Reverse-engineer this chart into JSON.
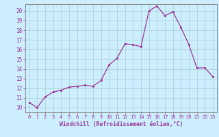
{
  "x": [
    0,
    1,
    2,
    3,
    4,
    5,
    6,
    7,
    8,
    9,
    10,
    11,
    12,
    13,
    14,
    15,
    16,
    17,
    18,
    19,
    20,
    21,
    22,
    23
  ],
  "y": [
    10.5,
    10.0,
    11.1,
    11.6,
    11.8,
    12.1,
    12.2,
    12.3,
    12.2,
    12.8,
    14.4,
    15.1,
    16.6,
    16.5,
    16.3,
    20.0,
    20.5,
    19.5,
    19.9,
    18.3,
    16.5,
    14.1,
    14.1,
    13.2
  ],
  "line_color": "#993399",
  "marker_color": "#993399",
  "bg_color": "#cceeff",
  "grid_color": "#aacccc",
  "xlabel": "Windchill (Refroidissement éolien,°C)",
  "xlabel_color": "#993399",
  "tick_color": "#993399",
  "xlim": [
    -0.5,
    23.5
  ],
  "ylim": [
    9.5,
    20.7
  ],
  "yticks": [
    10,
    11,
    12,
    13,
    14,
    15,
    16,
    17,
    18,
    19,
    20
  ],
  "xticks": [
    0,
    1,
    2,
    3,
    4,
    5,
    6,
    7,
    8,
    9,
    10,
    11,
    12,
    13,
    14,
    15,
    16,
    17,
    18,
    19,
    20,
    21,
    22,
    23
  ]
}
